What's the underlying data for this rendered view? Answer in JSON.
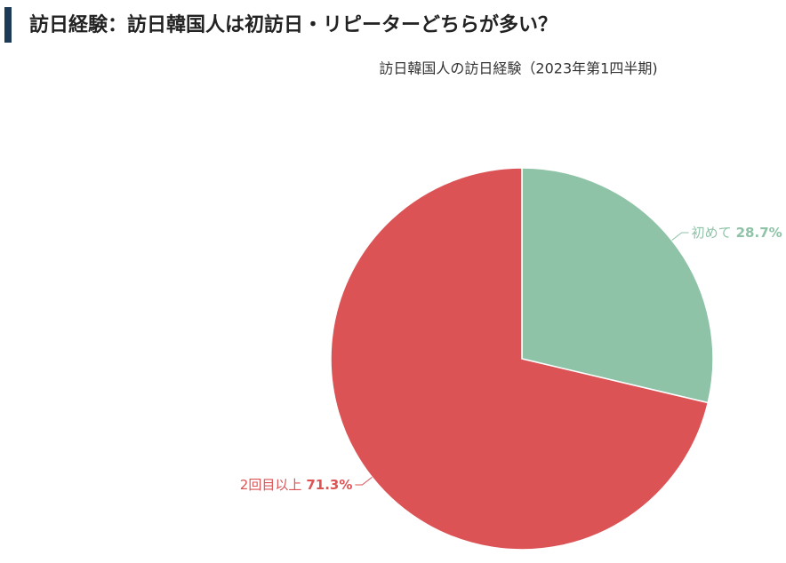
{
  "page_title": "訪日経験：訪日韓国人は初訪日・リピーターどちらが多い？",
  "chart_data": {
    "type": "pie",
    "title": "訪日韓国人の訪日経験（2023年第1四半期)",
    "categories": [
      "初めて",
      "2回目以上"
    ],
    "values": [
      28.7,
      71.3
    ],
    "value_labels": [
      "28.7%",
      "71.3%"
    ],
    "colors": [
      "#8fc3a8",
      "#dc5356"
    ]
  }
}
